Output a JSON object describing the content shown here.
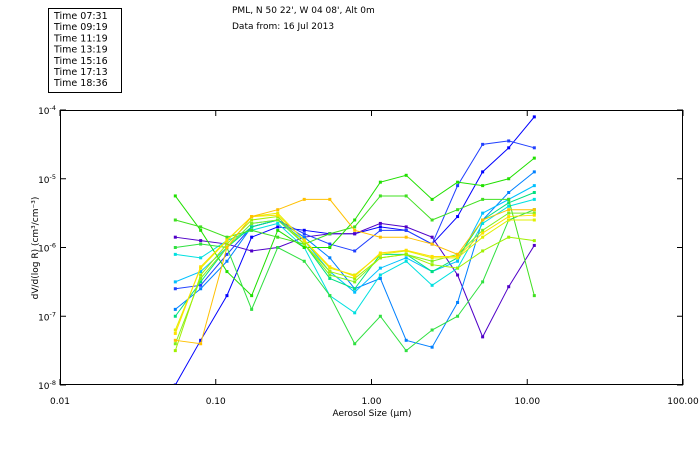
{
  "header": {
    "location": "PML, N 50 22', W 04 08', Alt 0m",
    "date_line": "Data from: 16 Jul 2013"
  },
  "legend": [
    {
      "label": "Time 07:31",
      "color": "#0000ff"
    },
    {
      "label": "Time 09:19",
      "color": "#0080ff"
    },
    {
      "label": "Time 11:19",
      "color": "#00e0e0"
    },
    {
      "label": "Time 13:19",
      "color": "#00e080"
    },
    {
      "label": "Time 15:16",
      "color": "#20e000"
    },
    {
      "label": "Time 17:13",
      "color": "#a0f000"
    },
    {
      "label": "Time 18:36",
      "color": "#ffc000"
    }
  ],
  "chart_data": {
    "type": "line",
    "xlabel": "Aerosol Size (µm)",
    "ylabel": "dV/d(log R)  (cm³/cm⁻³)",
    "xscale": "log",
    "yscale": "log",
    "xlim": [
      0.01,
      100
    ],
    "ylim_log10": [
      -8,
      -4
    ],
    "x_ticks": [
      "0.01",
      "0.10",
      "1.00",
      "10.00",
      "100.00"
    ],
    "x_tick_values": [
      0.01,
      0.1,
      1,
      10,
      100
    ],
    "y_ticks": [
      {
        "base": "10",
        "exp": "-4"
      },
      {
        "base": "10",
        "exp": "-5"
      },
      {
        "base": "10",
        "exp": "-6"
      },
      {
        "base": "10",
        "exp": "-7"
      },
      {
        "base": "10",
        "exp": "-8"
      }
    ],
    "y_tick_log10": [
      -4,
      -5,
      -6,
      -7,
      -8
    ],
    "legend_position": "top-left (outside)",
    "x": [
      0.055,
      0.08,
      0.118,
      0.17,
      0.25,
      0.37,
      0.54,
      0.78,
      1.14,
      1.67,
      2.45,
      3.57,
      5.17,
      7.6,
      11.1
    ],
    "series_log10_y": [
      {
        "color": "#0000ff",
        "values": [
          -8.0,
          -7.35,
          -6.7,
          -5.85,
          -5.7,
          -5.75,
          -5.8,
          -5.8,
          -5.7,
          -5.75,
          -5.95,
          -5.55,
          -4.9,
          -4.55,
          -4.1
        ]
      },
      {
        "color": "#5000c8",
        "values": [
          -5.85,
          -5.9,
          -5.95,
          -6.05,
          -6.0,
          -5.85,
          -5.8,
          -5.8,
          -5.65,
          -5.7,
          -5.85,
          -6.4,
          -7.3,
          -6.57,
          -5.97
        ]
      },
      {
        "color": "#2040ff",
        "values": [
          -6.6,
          -6.55,
          -6.1,
          -5.7,
          -5.6,
          -5.8,
          -5.95,
          -6.05,
          -5.75,
          -5.75,
          -5.95,
          -5.1,
          -4.5,
          -4.45,
          -4.55
        ]
      },
      {
        "color": "#0080ff",
        "values": [
          -6.9,
          -6.6,
          -6.2,
          -5.7,
          -5.6,
          -5.85,
          -6.15,
          -6.6,
          -6.45,
          -7.35,
          -7.45,
          -6.8,
          -5.6,
          -5.2,
          -4.9
        ]
      },
      {
        "color": "#00c0ff",
        "values": [
          -6.5,
          -6.35,
          -6.0,
          -5.65,
          -5.6,
          -5.9,
          -6.35,
          -6.65,
          -6.3,
          -6.15,
          -6.35,
          -6.2,
          -5.5,
          -5.3,
          -5.1
        ]
      },
      {
        "color": "#00e0e0",
        "values": [
          -6.1,
          -6.15,
          -5.9,
          -5.75,
          -5.65,
          -6.0,
          -6.7,
          -6.95,
          -6.4,
          -6.2,
          -6.55,
          -6.3,
          -5.65,
          -5.4,
          -5.3
        ]
      },
      {
        "color": "#00e080",
        "values": [
          -7.0,
          -6.5,
          -6.0,
          -5.7,
          -5.6,
          -5.95,
          -6.45,
          -6.6,
          -6.1,
          -6.1,
          -6.35,
          -6.15,
          -5.6,
          -5.35,
          -5.2
        ]
      },
      {
        "color": "#20e000",
        "values": [
          -5.25,
          -5.75,
          -6.35,
          -6.7,
          -5.75,
          -6.0,
          -6.0,
          -5.6,
          -5.05,
          -4.95,
          -5.3,
          -5.05,
          -5.1,
          -5.0,
          -4.7
        ]
      },
      {
        "color": "#30e040",
        "values": [
          -6.0,
          -5.95,
          -6.0,
          -6.9,
          -6.0,
          -6.2,
          -6.7,
          -7.4,
          -7.0,
          -7.5,
          -7.2,
          -7.0,
          -6.5,
          -5.6,
          -5.45
        ]
      },
      {
        "color": "#40e020",
        "values": [
          -5.6,
          -5.7,
          -5.85,
          -5.75,
          -5.85,
          -5.95,
          -5.8,
          -5.7,
          -5.25,
          -5.25,
          -5.6,
          -5.45,
          -5.3,
          -5.3,
          -6.7
        ]
      },
      {
        "color": "#80f020",
        "values": [
          -7.4,
          -6.45,
          -6.0,
          -5.65,
          -5.6,
          -5.95,
          -6.4,
          -6.5,
          -6.15,
          -6.1,
          -6.2,
          -6.1,
          -5.75,
          -5.5,
          -5.5
        ]
      },
      {
        "color": "#a0f000",
        "values": [
          -7.5,
          -6.4,
          -5.95,
          -5.6,
          -5.55,
          -5.95,
          -6.35,
          -6.45,
          -6.15,
          -6.1,
          -6.25,
          -6.3,
          -6.05,
          -5.85,
          -5.9
        ]
      },
      {
        "color": "#e0f000",
        "values": [
          -7.2,
          -6.3,
          -5.9,
          -5.55,
          -5.5,
          -5.9,
          -6.3,
          -6.4,
          -6.1,
          -6.05,
          -6.15,
          -6.15,
          -5.85,
          -5.6,
          -5.6
        ]
      },
      {
        "color": "#ffe000",
        "values": [
          -7.25,
          -6.28,
          -5.89,
          -5.55,
          -5.53,
          -5.89,
          -6.28,
          -6.42,
          -6.08,
          -6.04,
          -6.13,
          -6.13,
          -5.79,
          -5.55,
          -5.53
        ]
      },
      {
        "color": "#ffc000",
        "values": [
          -7.35,
          -7.4,
          -6.0,
          -5.55,
          -5.45,
          -5.3,
          -5.3,
          -5.75,
          -5.85,
          -5.85,
          -5.95,
          -6.1,
          -5.6,
          -5.45,
          -5.45
        ]
      }
    ]
  }
}
